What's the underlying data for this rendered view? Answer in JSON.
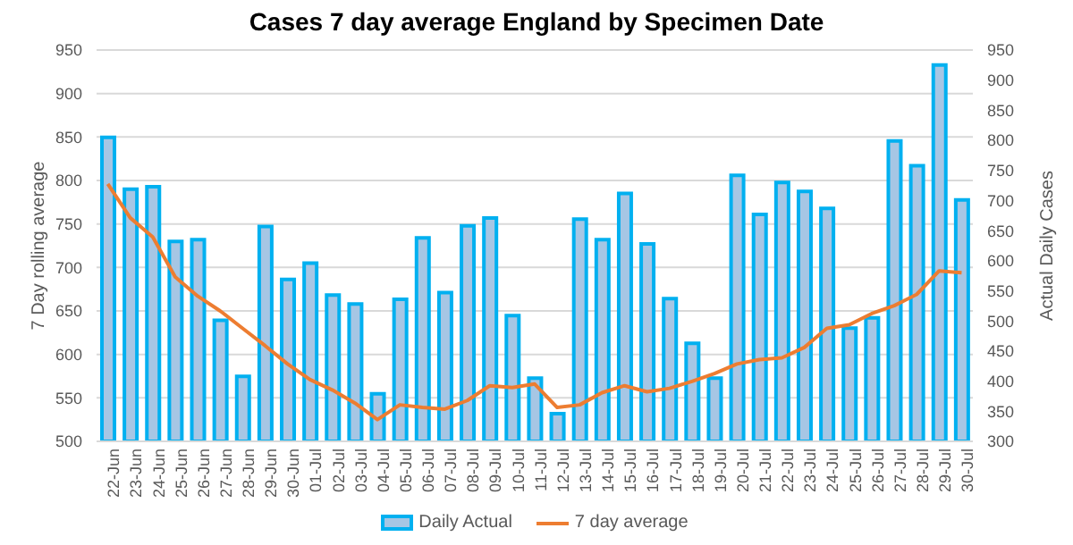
{
  "chart_data": {
    "type": "bar",
    "title": "Cases 7 day average England by Specimen Date",
    "ylabel": "7  Day rolling average",
    "y2label": "Actual Daily Cases",
    "categories": [
      "22-Jun",
      "23-Jun",
      "24-Jun",
      "25-Jun",
      "26-Jun",
      "27-Jun",
      "28-Jun",
      "29-Jun",
      "30-Jun",
      "01-Jul",
      "02-Jul",
      "03-Jul",
      "04-Jul",
      "05-Jul",
      "06-Jul",
      "07-Jul",
      "08-Jul",
      "09-Jul",
      "10-Jul",
      "11-Jul",
      "12-Jul",
      "13-Jul",
      "14-Jul",
      "15-Jul",
      "16-Jul",
      "17-Jul",
      "18-Jul",
      "19-Jul",
      "20-Jul",
      "21-Jul",
      "22-Jul",
      "23-Jul",
      "24-Jul",
      "25-Jul",
      "26-Jul",
      "27-Jul",
      "28-Jul",
      "29-Jul",
      "30-Jul"
    ],
    "series": [
      {
        "name": "Daily Actual",
        "axis": "y2",
        "color": "#00b0f0",
        "values": [
          805,
          719,
          723,
          632,
          635,
          501,
          408,
          657,
          569,
          596,
          543,
          528,
          379,
          536,
          638,
          547,
          658,
          671,
          509,
          405,
          346,
          669,
          635,
          712,
          628,
          537,
          463,
          405,
          742,
          677,
          730,
          715,
          687,
          488,
          505,
          799,
          758,
          925,
          701
        ]
      },
      {
        "name": "7 day average",
        "type": "line",
        "color": "#ed7d31",
        "values": [
          796,
          757,
          735,
          689,
          667,
          650,
          630,
          610,
          589,
          571,
          559,
          544,
          525,
          542,
          539,
          537,
          547,
          564,
          562,
          566,
          539,
          542,
          556,
          564,
          557,
          561,
          569,
          578,
          589,
          594,
          596,
          608,
          630,
          634,
          647,
          656,
          669,
          696,
          694
        ]
      }
    ],
    "ylim": [
      500,
      950
    ],
    "yticks": [
      500,
      550,
      600,
      650,
      700,
      750,
      800,
      850,
      900,
      950
    ],
    "y2lim": [
      300,
      950
    ],
    "y2ticks": [
      300,
      350,
      400,
      450,
      500,
      550,
      600,
      650,
      700,
      750,
      800,
      850,
      900,
      950
    ],
    "grid": "y",
    "legend": "bottom",
    "marker": "none"
  }
}
